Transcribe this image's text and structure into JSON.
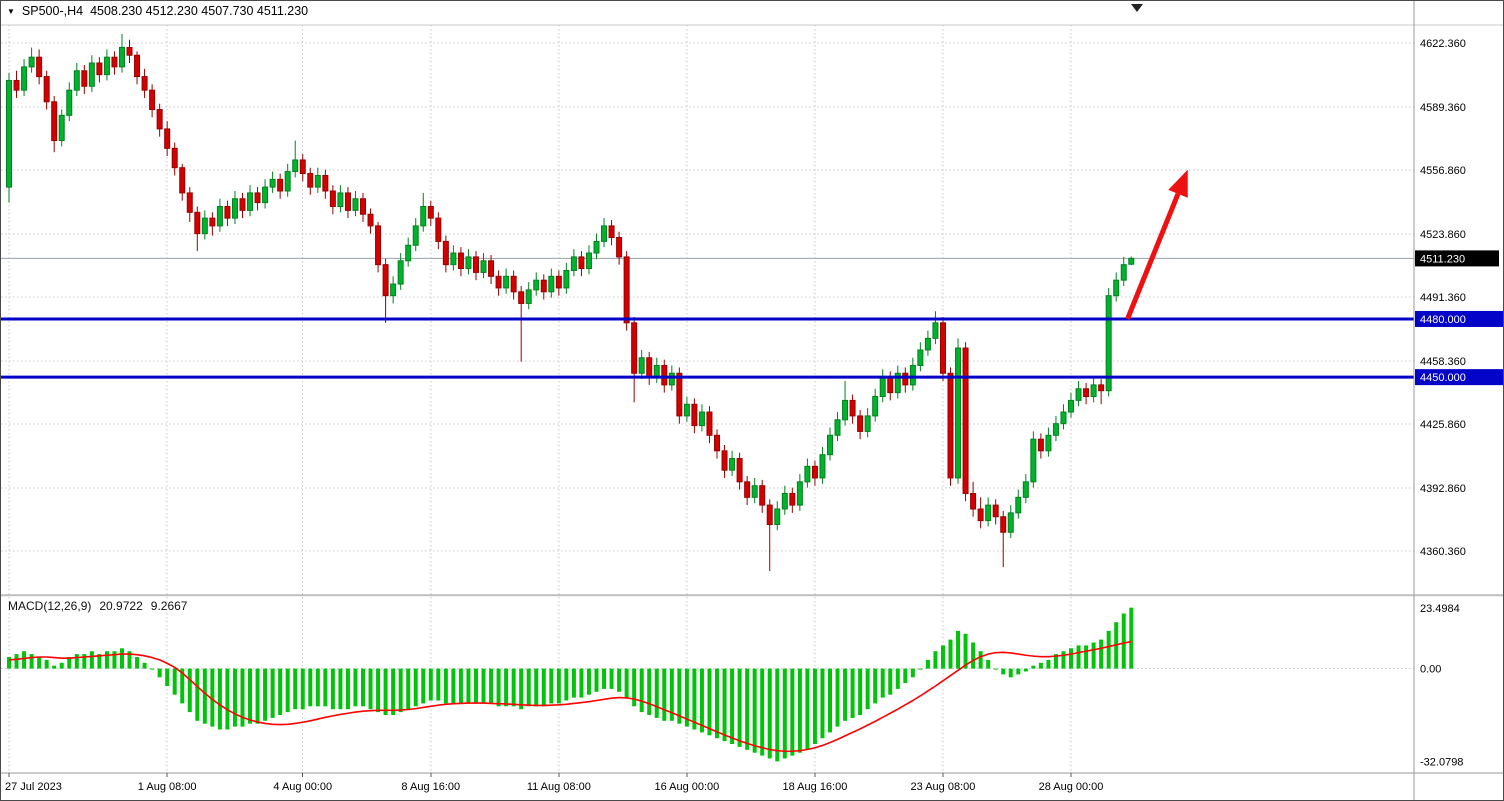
{
  "header": {
    "symbol_period": "SP500-,H4",
    "ohlc": "4508.230 4512.230 4507.730 4511.230",
    "open": "4508.230",
    "high": "4512.230",
    "low": "4507.730",
    "close": "4511.230",
    "dropdown_glyph": "▼"
  },
  "macd_header": {
    "name": "MACD(12,26,9)",
    "main_value": "20.9722",
    "signal_value": "9.2667"
  },
  "colors": {
    "grid": "#c9c9c9",
    "up": "#00b22c",
    "up_stroke": "#008220",
    "down": "#d40000",
    "down_stroke": "#990000",
    "level_line": "#0404c8",
    "last_price_line": "#9aa0aa",
    "last_price_badge": "#000000",
    "arrow": "#ee1111",
    "macd_hist": "#00c409",
    "macd_signal": "#ff0000",
    "axis_text": "#000000",
    "separator": "#9a9a9a"
  },
  "chart_data": [
    {
      "type": "candlestick",
      "title": "SP500-,H4",
      "ylim": [
        4339.7,
        4631.6
      ],
      "grid": true,
      "y_ticks": [
        {
          "value": 4622.36,
          "label": "4622.360"
        },
        {
          "value": 4589.36,
          "label": "4589.360"
        },
        {
          "value": 4556.86,
          "label": "4556.860"
        },
        {
          "value": 4523.86,
          "label": "4523.860"
        },
        {
          "value": 4491.36,
          "label": "4491.360"
        },
        {
          "value": 4458.36,
          "label": "4458.360"
        },
        {
          "value": 4425.86,
          "label": "4425.860"
        },
        {
          "value": 4392.86,
          "label": "4392.860"
        },
        {
          "value": 4360.36,
          "label": "4360.360"
        }
      ],
      "x_ticks": [
        {
          "label": "27 Jul 2023",
          "index": 0
        },
        {
          "label": "1 Aug 08:00",
          "index": 21
        },
        {
          "label": "4 Aug 00:00",
          "index": 39
        },
        {
          "label": "8 Aug 16:00",
          "index": 56
        },
        {
          "label": "11 Aug 08:00",
          "index": 73
        },
        {
          "label": "16 Aug 00:00",
          "index": 90
        },
        {
          "label": "18 Aug 16:00",
          "index": 107
        },
        {
          "label": "23 Aug 08:00",
          "index": 124
        },
        {
          "label": "28 Aug 00:00",
          "index": 141
        }
      ],
      "hlines": [
        {
          "value": 4480.0,
          "label": "4480.000"
        },
        {
          "value": 4450.0,
          "label": "4450.000"
        }
      ],
      "last_price": {
        "value": 4511.23,
        "label": "4511.230"
      },
      "annotations": [
        {
          "type": "arrow",
          "from_index": 148.5,
          "from_value": 4480,
          "to_index": 156.5,
          "to_value": 4557
        }
      ],
      "candles": [
        [
          4548,
          4607,
          4540,
          4603
        ],
        [
          4603,
          4608,
          4594,
          4598
        ],
        [
          4598,
          4614,
          4595,
          4610
        ],
        [
          4610,
          4620,
          4607,
          4615
        ],
        [
          4615,
          4619,
          4601,
          4605
        ],
        [
          4605,
          4608,
          4588,
          4592
        ],
        [
          4592,
          4595,
          4566,
          4572
        ],
        [
          4572,
          4588,
          4569,
          4585
        ],
        [
          4585,
          4602,
          4582,
          4598
        ],
        [
          4598,
          4612,
          4595,
          4608
        ],
        [
          4608,
          4611,
          4596,
          4600
        ],
        [
          4600,
          4616,
          4597,
          4612
        ],
        [
          4612,
          4615,
          4602,
          4606
        ],
        [
          4606,
          4619,
          4603,
          4615
        ],
        [
          4615,
          4618,
          4606,
          4610
        ],
        [
          4610,
          4627,
          4607,
          4620
        ],
        [
          4620,
          4624,
          4612,
          4616
        ],
        [
          4616,
          4618,
          4601,
          4605
        ],
        [
          4605,
          4609,
          4594,
          4598
        ],
        [
          4598,
          4601,
          4584,
          4588
        ],
        [
          4588,
          4591,
          4574,
          4578
        ],
        [
          4578,
          4582,
          4564,
          4568
        ],
        [
          4568,
          4571,
          4554,
          4558
        ],
        [
          4558,
          4560,
          4541,
          4545
        ],
        [
          4545,
          4548,
          4530,
          4535
        ],
        [
          4535,
          4538,
          4515,
          4524
        ],
        [
          4524,
          4536,
          4521,
          4532
        ],
        [
          4532,
          4535,
          4523,
          4528
        ],
        [
          4528,
          4542,
          4525,
          4538
        ],
        [
          4538,
          4541,
          4528,
          4532
        ],
        [
          4532,
          4546,
          4529,
          4542
        ],
        [
          4542,
          4545,
          4532,
          4536
        ],
        [
          4536,
          4549,
          4533,
          4545
        ],
        [
          4545,
          4548,
          4536,
          4540
        ],
        [
          4540,
          4552,
          4537,
          4548
        ],
        [
          4548,
          4556,
          4545,
          4552
        ],
        [
          4552,
          4555,
          4542,
          4546
        ],
        [
          4546,
          4560,
          4543,
          4556
        ],
        [
          4556,
          4572,
          4553,
          4562
        ],
        [
          4562,
          4565,
          4551,
          4555
        ],
        [
          4555,
          4558,
          4544,
          4548
        ],
        [
          4548,
          4558,
          4545,
          4554
        ],
        [
          4554,
          4557,
          4542,
          4546
        ],
        [
          4546,
          4549,
          4534,
          4538
        ],
        [
          4538,
          4549,
          4535,
          4545
        ],
        [
          4545,
          4548,
          4532,
          4536
        ],
        [
          4536,
          4546,
          4533,
          4542
        ],
        [
          4542,
          4545,
          4530,
          4534
        ],
        [
          4534,
          4537,
          4524,
          4528
        ],
        [
          4528,
          4530,
          4504,
          4508
        ],
        [
          4508,
          4511,
          4478,
          4492
        ],
        [
          4492,
          4502,
          4488,
          4498
        ],
        [
          4498,
          4514,
          4495,
          4510
        ],
        [
          4510,
          4522,
          4507,
          4518
        ],
        [
          4518,
          4532,
          4515,
          4528
        ],
        [
          4528,
          4545,
          4525,
          4538
        ],
        [
          4538,
          4541,
          4528,
          4532
        ],
        [
          4532,
          4535,
          4516,
          4520
        ],
        [
          4520,
          4523,
          4504,
          4508
        ],
        [
          4508,
          4518,
          4505,
          4514
        ],
        [
          4514,
          4517,
          4502,
          4506
        ],
        [
          4506,
          4516,
          4503,
          4512
        ],
        [
          4512,
          4515,
          4500,
          4504
        ],
        [
          4504,
          4514,
          4501,
          4510
        ],
        [
          4510,
          4513,
          4498,
          4502
        ],
        [
          4502,
          4505,
          4492,
          4496
        ],
        [
          4496,
          4506,
          4493,
          4502
        ],
        [
          4502,
          4505,
          4490,
          4494
        ],
        [
          4494,
          4497,
          4458,
          4488
        ],
        [
          4488,
          4499,
          4485,
          4495
        ],
        [
          4495,
          4504,
          4492,
          4500
        ],
        [
          4500,
          4503,
          4490,
          4494
        ],
        [
          4494,
          4506,
          4491,
          4502
        ],
        [
          4502,
          4505,
          4492,
          4496
        ],
        [
          4496,
          4509,
          4493,
          4505
        ],
        [
          4505,
          4516,
          4502,
          4512
        ],
        [
          4512,
          4515,
          4502,
          4506
        ],
        [
          4506,
          4518,
          4503,
          4514
        ],
        [
          4514,
          4524,
          4511,
          4520
        ],
        [
          4520,
          4532,
          4517,
          4528
        ],
        [
          4528,
          4531,
          4518,
          4522
        ],
        [
          4522,
          4525,
          4508,
          4512
        ],
        [
          4512,
          4515,
          4474,
          4478
        ],
        [
          4478,
          4481,
          4437,
          4452
        ],
        [
          4452,
          4464,
          4449,
          4460
        ],
        [
          4460,
          4463,
          4446,
          4450
        ],
        [
          4450,
          4460,
          4447,
          4456
        ],
        [
          4456,
          4459,
          4442,
          4446
        ],
        [
          4446,
          4456,
          4443,
          4452
        ],
        [
          4452,
          4455,
          4426,
          4430
        ],
        [
          4430,
          4440,
          4427,
          4436
        ],
        [
          4436,
          4439,
          4421,
          4425
        ],
        [
          4425,
          4436,
          4422,
          4432
        ],
        [
          4432,
          4435,
          4416,
          4420
        ],
        [
          4420,
          4423,
          4408,
          4412
        ],
        [
          4412,
          4415,
          4398,
          4402
        ],
        [
          4402,
          4412,
          4399,
          4408
        ],
        [
          4408,
          4411,
          4392,
          4396
        ],
        [
          4396,
          4399,
          4384,
          4388
        ],
        [
          4388,
          4398,
          4385,
          4394
        ],
        [
          4394,
          4397,
          4380,
          4384
        ],
        [
          4384,
          4387,
          4350,
          4374
        ],
        [
          4374,
          4386,
          4371,
          4382
        ],
        [
          4382,
          4394,
          4379,
          4390
        ],
        [
          4390,
          4393,
          4380,
          4384
        ],
        [
          4384,
          4400,
          4381,
          4396
        ],
        [
          4396,
          4408,
          4393,
          4404
        ],
        [
          4404,
          4407,
          4394,
          4398
        ],
        [
          4398,
          4414,
          4395,
          4410
        ],
        [
          4410,
          4424,
          4407,
          4420
        ],
        [
          4420,
          4432,
          4417,
          4428
        ],
        [
          4428,
          4448,
          4425,
          4438
        ],
        [
          4438,
          4441,
          4426,
          4430
        ],
        [
          4430,
          4433,
          4418,
          4422
        ],
        [
          4422,
          4434,
          4419,
          4430
        ],
        [
          4430,
          4444,
          4427,
          4440
        ],
        [
          4440,
          4454,
          4437,
          4450
        ],
        [
          4450,
          4453,
          4438,
          4442
        ],
        [
          4442,
          4456,
          4439,
          4452
        ],
        [
          4452,
          4455,
          4442,
          4446
        ],
        [
          4446,
          4460,
          4443,
          4456
        ],
        [
          4456,
          4468,
          4453,
          4464
        ],
        [
          4464,
          4474,
          4461,
          4470
        ],
        [
          4470,
          4484,
          4467,
          4478
        ],
        [
          4478,
          4481,
          4448,
          4452
        ],
        [
          4452,
          4455,
          4394,
          4398
        ],
        [
          4398,
          4470,
          4395,
          4465
        ],
        [
          4465,
          4468,
          4386,
          4390
        ],
        [
          4390,
          4396,
          4378,
          4382
        ],
        [
          4382,
          4388,
          4372,
          4376
        ],
        [
          4376,
          4388,
          4373,
          4384
        ],
        [
          4384,
          4387,
          4374,
          4378
        ],
        [
          4378,
          4381,
          4352,
          4370
        ],
        [
          4370,
          4384,
          4367,
          4380
        ],
        [
          4380,
          4392,
          4377,
          4388
        ],
        [
          4388,
          4400,
          4385,
          4396
        ],
        [
          4396,
          4422,
          4393,
          4418
        ],
        [
          4418,
          4421,
          4408,
          4412
        ],
        [
          4412,
          4424,
          4409,
          4420
        ],
        [
          4420,
          4430,
          4417,
          4426
        ],
        [
          4426,
          4436,
          4423,
          4432
        ],
        [
          4432,
          4442,
          4429,
          4438
        ],
        [
          4438,
          4448,
          4435,
          4444
        ],
        [
          4444,
          4447,
          4436,
          4440
        ],
        [
          4440,
          4450,
          4437,
          4446
        ],
        [
          4446,
          4449,
          4436,
          4443
        ],
        [
          4443,
          4496,
          4440,
          4492
        ],
        [
          4492,
          4504,
          4489,
          4500
        ],
        [
          4500,
          4512,
          4497,
          4508
        ],
        [
          4508.23,
          4512.23,
          4507.73,
          4511.23
        ]
      ]
    },
    {
      "type": "bar",
      "title": "MACD(12,26,9)",
      "current_values": [
        20.9722,
        9.2667
      ],
      "ylim": [
        -36,
        24
      ],
      "y_ticks": [
        {
          "value": 23.4984,
          "label": "23.4984"
        },
        {
          "value": 0,
          "label": "0.00"
        },
        {
          "value": -32.0798,
          "label": "-32.0798"
        }
      ],
      "histogram": [
        4,
        5,
        6,
        5,
        4,
        3,
        1,
        2,
        4,
        5,
        5,
        6,
        5,
        6,
        6,
        7,
        6,
        4,
        2,
        0,
        -3,
        -6,
        -9,
        -12,
        -15,
        -18,
        -19,
        -20,
        -21,
        -21,
        -20,
        -20,
        -19,
        -19,
        -18,
        -17,
        -16,
        -15,
        -14,
        -14,
        -13,
        -13,
        -13,
        -14,
        -14,
        -14,
        -13,
        -13,
        -14,
        -15,
        -16,
        -16,
        -15,
        -14,
        -13,
        -12,
        -11,
        -11,
        -12,
        -12,
        -12,
        -12,
        -12,
        -12,
        -12,
        -13,
        -13,
        -13,
        -14,
        -13,
        -13,
        -13,
        -12,
        -12,
        -11,
        -10,
        -10,
        -9,
        -8,
        -7,
        -7,
        -8,
        -10,
        -13,
        -15,
        -16,
        -17,
        -18,
        -18,
        -19,
        -20,
        -21,
        -22,
        -23,
        -24,
        -25,
        -26,
        -27,
        -28,
        -29,
        -30,
        -31,
        -32,
        -31,
        -30,
        -29,
        -28,
        -26,
        -24,
        -22,
        -20,
        -18,
        -17,
        -16,
        -14,
        -12,
        -10,
        -9,
        -7,
        -5,
        -3,
        0,
        3,
        6,
        8,
        10,
        13,
        12,
        9,
        6,
        3,
        0,
        -2,
        -3,
        -2,
        -1,
        1,
        2,
        3,
        5,
        6,
        7,
        8,
        8,
        9,
        10,
        13,
        16,
        19,
        21
      ],
      "signal": [
        3.0,
        3.2,
        3.5,
        3.8,
        4.0,
        4.0,
        3.8,
        3.6,
        3.6,
        3.8,
        4.0,
        4.2,
        4.4,
        4.6,
        4.8,
        5.0,
        5.0,
        4.8,
        4.4,
        3.8,
        3.0,
        1.8,
        0.4,
        -1.5,
        -3.8,
        -6.2,
        -8.5,
        -10.6,
        -12.5,
        -14.2,
        -15.6,
        -16.8,
        -17.7,
        -18.4,
        -18.9,
        -19.2,
        -19.3,
        -19.2,
        -18.9,
        -18.5,
        -18.0,
        -17.4,
        -16.8,
        -16.3,
        -15.8,
        -15.4,
        -15.0,
        -14.7,
        -14.5,
        -14.4,
        -14.4,
        -14.4,
        -14.3,
        -14.1,
        -13.8,
        -13.4,
        -13.0,
        -12.6,
        -12.3,
        -12.1,
        -12.0,
        -11.9,
        -11.9,
        -11.9,
        -12.0,
        -12.1,
        -12.2,
        -12.3,
        -12.5,
        -12.6,
        -12.7,
        -12.7,
        -12.6,
        -12.5,
        -12.3,
        -12.0,
        -11.7,
        -11.4,
        -11.0,
        -10.6,
        -10.2,
        -10.0,
        -10.1,
        -10.5,
        -11.2,
        -12.1,
        -13.1,
        -14.2,
        -15.2,
        -16.3,
        -17.4,
        -18.5,
        -19.6,
        -20.7,
        -21.8,
        -22.9,
        -23.9,
        -24.9,
        -25.8,
        -26.6,
        -27.3,
        -27.9,
        -28.3,
        -28.5,
        -28.5,
        -28.3,
        -27.9,
        -27.3,
        -26.5,
        -25.5,
        -24.4,
        -23.2,
        -22.0,
        -20.8,
        -19.5,
        -18.2,
        -16.8,
        -15.4,
        -14.0,
        -12.5,
        -11.0,
        -9.4,
        -7.7,
        -6.0,
        -4.2,
        -2.4,
        -0.6,
        1.2,
        2.8,
        4.1,
        5.0,
        5.5,
        5.6,
        5.4,
        5.0,
        4.6,
        4.3,
        4.1,
        4.1,
        4.3,
        4.6,
        5.0,
        5.5,
        6.0,
        6.5,
        7.0,
        7.6,
        8.2,
        8.8,
        9.3
      ]
    }
  ]
}
